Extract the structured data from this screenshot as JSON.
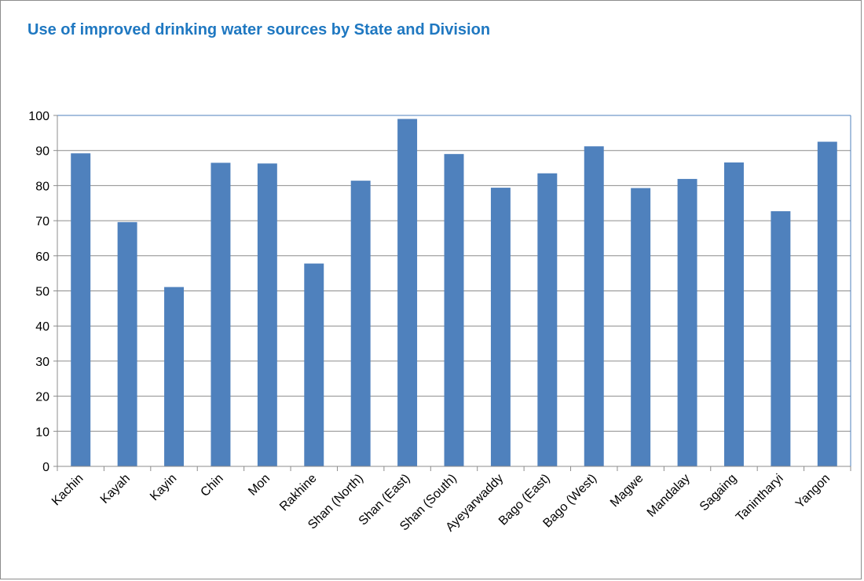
{
  "chart_data": {
    "type": "bar",
    "title": "Use of improved drinking water sources by State and Division",
    "xlabel": "",
    "ylabel": "",
    "ylim": [
      0,
      100
    ],
    "yticks": [
      0,
      10,
      20,
      30,
      40,
      50,
      60,
      70,
      80,
      90,
      100
    ],
    "grid": true,
    "legend": "none",
    "bar_color": "#4f81bd",
    "title_color": "#1f78c1",
    "categories": [
      "Kachin",
      "Kayah",
      "Kayin",
      "Chin",
      "Mon",
      "Rakhine",
      "Shan (North)",
      "Shan (East)",
      "Shan (South)",
      "Ayeyarwaddy",
      "Bago (East)",
      "Bago (West)",
      "Magwe",
      "Mandalay",
      "Sagaing",
      "Tanintharyi",
      "Yangon"
    ],
    "values": [
      89.2,
      69.6,
      51.1,
      86.5,
      86.3,
      57.8,
      81.4,
      99.0,
      89.0,
      79.4,
      83.5,
      91.2,
      79.3,
      81.9,
      86.6,
      72.7,
      92.5
    ]
  }
}
